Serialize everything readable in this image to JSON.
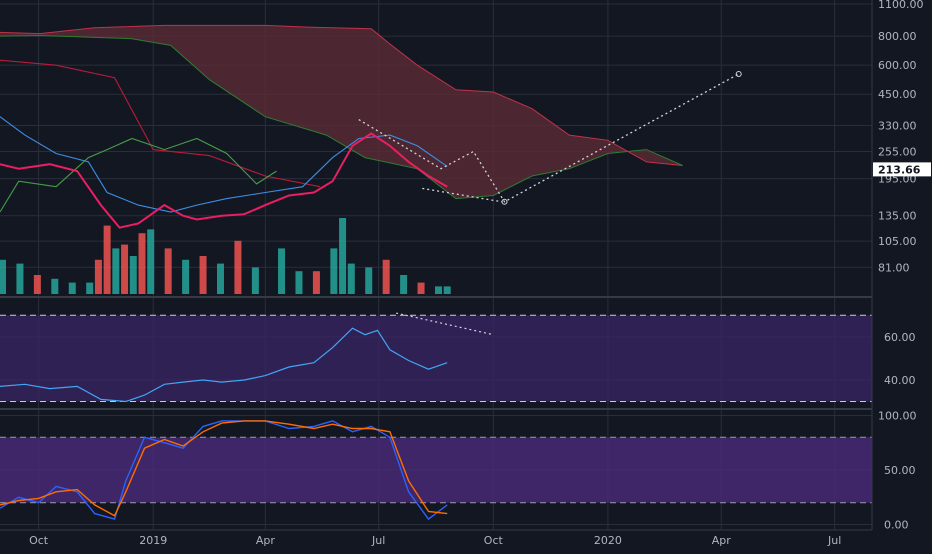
{
  "colors": {
    "background": "#131722",
    "grid": "#2a2e39",
    "bull": "#26a69a",
    "bear": "#ef5350",
    "cloud_fill": "#5b2a35",
    "cloud_upper": "#c0324a",
    "cloud_lower": "#2e7d32",
    "conversion": "#3d8ee6",
    "base": "#b71c3c",
    "lagging": "#43a047",
    "price_line": "#e91e63",
    "rsi_line": "#42a5f5",
    "rsi_band": "#3a2566",
    "stoch_k": "#2962ff",
    "stoch_d": "#ff6d00",
    "stoch_band": "#4a2a7a",
    "projection": "#d1d4dc"
  },
  "chart_data": [
    {
      "type": "candlestick-ichimoku",
      "pane": "price",
      "scale": "log",
      "ylim": [
        70,
        1100
      ],
      "y_ticks": [
        "1100.00",
        "800.00",
        "600.00",
        "450.00",
        "330.00",
        "255.00",
        "195.00",
        "135.00",
        "105.00",
        "81.00"
      ],
      "y_tick_values": [
        1100,
        800,
        600,
        450,
        330,
        255,
        195,
        135,
        105,
        81
      ],
      "x_ticks": [
        "Oct",
        "2019",
        "Apr",
        "Jul",
        "Oct",
        "2020",
        "Apr",
        "Jul"
      ],
      "x_tick_dates": [
        "2018-10-01",
        "2019-01-01",
        "2019-04-01",
        "2019-07-01",
        "2019-10-01",
        "2020-01-01",
        "2020-04-01",
        "2020-07-01"
      ],
      "xlim": [
        "2018-08-31",
        "2020-07-31"
      ],
      "last_price": "213.66",
      "last_price_value": 213.66,
      "series": [
        {
          "name": "",
          "role": "cloud-upper",
          "x": [
            "2018-08-31",
            "2018-10-02",
            "2018-11-15",
            "2019-01-10",
            "2019-04-01",
            "2019-05-05",
            "2019-06-25",
            "2019-07-10",
            "2019-08-01",
            "2019-09-01",
            "2019-10-01",
            "2019-11-01",
            "2019-12-01",
            "2020-01-01",
            "2020-02-01",
            "2020-03-01"
          ],
          "y": [
            830,
            820,
            870,
            890,
            890,
            875,
            860,
            740,
            600,
            470,
            460,
            390,
            300,
            285,
            230,
            222
          ]
        },
        {
          "name": "",
          "role": "cloud-lower",
          "x": [
            "2018-08-31",
            "2018-10-02",
            "2018-12-15",
            "2019-01-15",
            "2019-02-15",
            "2019-04-01",
            "2019-05-20",
            "2019-06-20",
            "2019-08-01",
            "2019-09-01",
            "2019-10-01",
            "2019-11-01",
            "2019-12-01",
            "2020-01-01",
            "2020-02-01",
            "2020-03-01"
          ],
          "y": [
            800,
            805,
            780,
            730,
            520,
            360,
            300,
            240,
            215,
            160,
            165,
            200,
            215,
            250,
            260,
            222
          ]
        },
        {
          "name": "",
          "role": "base-line",
          "x": [
            "2018-08-31",
            "2018-10-15",
            "2018-12-01",
            "2019-01-01",
            "2019-02-15",
            "2019-04-01",
            "2019-05-15"
          ],
          "y": [
            630,
            600,
            530,
            260,
            245,
            200,
            180
          ]
        },
        {
          "name": "",
          "role": "conversion-line",
          "x": [
            "2018-08-31",
            "2018-09-20",
            "2018-10-15",
            "2018-11-10",
            "2018-11-25",
            "2018-12-20",
            "2019-01-15",
            "2019-02-05",
            "2019-03-01",
            "2019-04-01",
            "2019-05-01",
            "2019-05-25",
            "2019-06-15",
            "2019-07-10",
            "2019-08-01",
            "2019-08-25"
          ],
          "y": [
            360,
            300,
            250,
            230,
            170,
            150,
            140,
            150,
            160,
            170,
            180,
            240,
            290,
            300,
            270,
            220
          ]
        },
        {
          "name": "",
          "role": "lagging-span",
          "x": [
            "2018-08-31",
            "2018-09-15",
            "2018-10-15",
            "2018-11-10",
            "2018-11-25",
            "2018-12-15",
            "2019-01-10",
            "2019-02-05",
            "2019-03-01",
            "2019-03-25",
            "2019-04-10"
          ],
          "y": [
            140,
            190,
            180,
            240,
            260,
            290,
            260,
            290,
            250,
            185,
            210
          ]
        },
        {
          "name": "",
          "role": "price",
          "x": [
            "2018-08-31",
            "2018-09-15",
            "2018-10-10",
            "2018-11-01",
            "2018-11-20",
            "2018-12-05",
            "2018-12-20",
            "2019-01-10",
            "2019-01-25",
            "2019-02-05",
            "2019-02-25",
            "2019-03-15",
            "2019-04-01",
            "2019-04-20",
            "2019-05-10",
            "2019-05-25",
            "2019-06-10",
            "2019-06-25",
            "2019-07-10",
            "2019-07-25",
            "2019-08-10",
            "2019-08-25"
          ],
          "y": [
            225,
            215,
            225,
            210,
            150,
            120,
            125,
            150,
            135,
            130,
            135,
            137,
            150,
            165,
            170,
            190,
            270,
            305,
            270,
            230,
            200,
            180
          ]
        }
      ],
      "volume": [
        {
          "date": "2018-09-02",
          "value": 0.9,
          "dir": "up"
        },
        {
          "date": "2018-09-16",
          "value": 0.8,
          "dir": "up"
        },
        {
          "date": "2018-09-30",
          "value": 0.5,
          "dir": "dn"
        },
        {
          "date": "2018-10-14",
          "value": 0.4,
          "dir": "up"
        },
        {
          "date": "2018-10-28",
          "value": 0.3,
          "dir": "up"
        },
        {
          "date": "2018-11-11",
          "value": 0.3,
          "dir": "up"
        },
        {
          "date": "2018-11-18",
          "value": 0.9,
          "dir": "dn"
        },
        {
          "date": "2018-11-25",
          "value": 1.8,
          "dir": "dn"
        },
        {
          "date": "2018-12-02",
          "value": 1.2,
          "dir": "up"
        },
        {
          "date": "2018-12-09",
          "value": 1.3,
          "dir": "dn"
        },
        {
          "date": "2018-12-16",
          "value": 1.0,
          "dir": "up"
        },
        {
          "date": "2018-12-23",
          "value": 1.6,
          "dir": "dn"
        },
        {
          "date": "2018-12-30",
          "value": 1.7,
          "dir": "up"
        },
        {
          "date": "2019-01-13",
          "value": 1.2,
          "dir": "dn"
        },
        {
          "date": "2019-01-27",
          "value": 0.9,
          "dir": "up"
        },
        {
          "date": "2019-02-10",
          "value": 1.0,
          "dir": "dn"
        },
        {
          "date": "2019-02-24",
          "value": 0.8,
          "dir": "up"
        },
        {
          "date": "2019-03-10",
          "value": 1.4,
          "dir": "dn"
        },
        {
          "date": "2019-03-24",
          "value": 0.7,
          "dir": "up"
        },
        {
          "date": "2019-04-14",
          "value": 1.2,
          "dir": "up"
        },
        {
          "date": "2019-04-28",
          "value": 0.6,
          "dir": "up"
        },
        {
          "date": "2019-05-12",
          "value": 0.6,
          "dir": "dn"
        },
        {
          "date": "2019-05-26",
          "value": 1.2,
          "dir": "up"
        },
        {
          "date": "2019-06-02",
          "value": 2.0,
          "dir": "up"
        },
        {
          "date": "2019-06-09",
          "value": 0.8,
          "dir": "up"
        },
        {
          "date": "2019-06-23",
          "value": 0.7,
          "dir": "up"
        },
        {
          "date": "2019-07-07",
          "value": 0.9,
          "dir": "dn"
        },
        {
          "date": "2019-07-21",
          "value": 0.5,
          "dir": "up"
        },
        {
          "date": "2019-08-04",
          "value": 0.3,
          "dir": "dn"
        },
        {
          "date": "2019-08-18",
          "value": 0.2,
          "dir": "up"
        },
        {
          "date": "2019-08-25",
          "value": 0.2,
          "dir": "up"
        }
      ],
      "projection_path": [
        {
          "date": "2019-06-15",
          "value": 350
        },
        {
          "date": "2019-08-20",
          "value": 215
        },
        {
          "date": "2019-09-15",
          "value": 255
        },
        {
          "date": "2019-10-10",
          "value": 155
        },
        {
          "date": "2020-04-15",
          "value": 550
        }
      ],
      "projection_left_arm": [
        {
          "date": "2019-08-05",
          "value": 177
        },
        {
          "date": "2019-10-08",
          "value": 155
        }
      ]
    },
    {
      "type": "line",
      "pane": "rsi",
      "ylim": [
        27,
        78
      ],
      "y_ticks": [
        "60.00",
        "40.00"
      ],
      "y_tick_values": [
        60,
        40
      ],
      "bands": [
        30,
        70
      ],
      "series": [
        {
          "name": "",
          "x": [
            "2018-08-31",
            "2018-09-20",
            "2018-10-10",
            "2018-11-01",
            "2018-11-20",
            "2018-12-10",
            "2018-12-25",
            "2019-01-10",
            "2019-01-25",
            "2019-02-10",
            "2019-02-25",
            "2019-03-15",
            "2019-04-01",
            "2019-04-20",
            "2019-05-10",
            "2019-05-25",
            "2019-06-10",
            "2019-06-20",
            "2019-06-30",
            "2019-07-10",
            "2019-07-25",
            "2019-08-10",
            "2019-08-25"
          ],
          "y": [
            37,
            38,
            36,
            37,
            31,
            30,
            33,
            38,
            39,
            40,
            39,
            40,
            42,
            46,
            48,
            55,
            64,
            61,
            63,
            54,
            49,
            45,
            48
          ]
        }
      ]
    },
    {
      "type": "line",
      "pane": "stochastic",
      "ylim": [
        -5,
        105
      ],
      "y_ticks": [
        "100.00",
        "50.00",
        "0.00"
      ],
      "y_tick_values": [
        100,
        50,
        0
      ],
      "bands": [
        20,
        80
      ],
      "series": [
        {
          "name": "",
          "x": [
            "2018-08-31",
            "2018-09-15",
            "2018-10-01",
            "2018-10-15",
            "2018-11-01",
            "2018-11-15",
            "2018-12-01",
            "2018-12-10",
            "2018-12-25",
            "2019-01-10",
            "2019-01-25",
            "2019-02-10",
            "2019-02-25",
            "2019-03-15",
            "2019-04-01",
            "2019-04-20",
            "2019-05-10",
            "2019-05-25",
            "2019-06-10",
            "2019-06-25",
            "2019-07-10",
            "2019-07-25",
            "2019-08-10",
            "2019-08-25"
          ],
          "y": [
            15,
            25,
            20,
            35,
            30,
            10,
            5,
            40,
            80,
            75,
            70,
            90,
            95,
            95,
            95,
            88,
            90,
            95,
            85,
            90,
            80,
            30,
            5,
            18
          ]
        },
        {
          "name": "",
          "x": [
            "2018-08-31",
            "2018-09-15",
            "2018-10-01",
            "2018-10-15",
            "2018-11-01",
            "2018-11-15",
            "2018-12-01",
            "2018-12-10",
            "2018-12-25",
            "2019-01-10",
            "2019-01-25",
            "2019-02-10",
            "2019-02-25",
            "2019-03-15",
            "2019-04-01",
            "2019-04-20",
            "2019-05-10",
            "2019-05-25",
            "2019-06-10",
            "2019-06-25",
            "2019-07-10",
            "2019-07-25",
            "2019-08-10",
            "2019-08-25"
          ],
          "y": [
            18,
            22,
            24,
            30,
            32,
            18,
            8,
            30,
            70,
            78,
            72,
            85,
            93,
            95,
            95,
            92,
            88,
            92,
            88,
            88,
            85,
            40,
            12,
            10
          ]
        }
      ]
    }
  ]
}
